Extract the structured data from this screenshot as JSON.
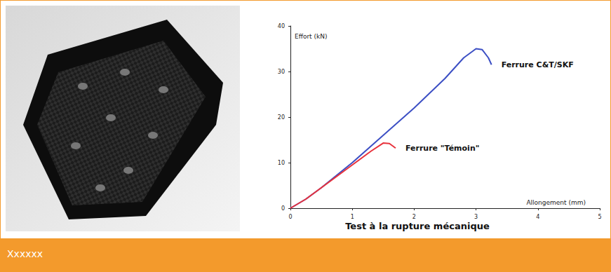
{
  "chart_data": {
    "type": "line",
    "title": "Test à la rupture mécanique",
    "x_label": "Allongement (mm)",
    "y_label": "Effort (kN)",
    "xlim": [
      0,
      5
    ],
    "xticks": [
      0,
      1,
      2,
      3,
      4,
      5
    ],
    "ylim": [
      0,
      40
    ],
    "yticks": [
      0,
      10,
      20,
      30,
      40
    ],
    "grid": false,
    "legend": false,
    "series": [
      {
        "name": "Ferrure C&T/SKF",
        "color": "#3c4fc4",
        "x": [
          0,
          0.25,
          0.5,
          1,
          1.5,
          2,
          2.5,
          2.8,
          3.0,
          3.1,
          3.2,
          3.25
        ],
        "values": [
          0,
          2,
          4.5,
          10,
          16,
          22,
          28.5,
          33,
          35,
          34.8,
          33,
          31.5
        ]
      },
      {
        "name": "Ferrure \"Témoin\"",
        "color": "#e8323c",
        "x": [
          0,
          0.25,
          0.5,
          1,
          1.3,
          1.5,
          1.6,
          1.7
        ],
        "values": [
          0,
          2,
          4.5,
          9.5,
          12.5,
          14.3,
          14.2,
          13.2
        ]
      }
    ]
  },
  "caption": "Xxxxxx"
}
